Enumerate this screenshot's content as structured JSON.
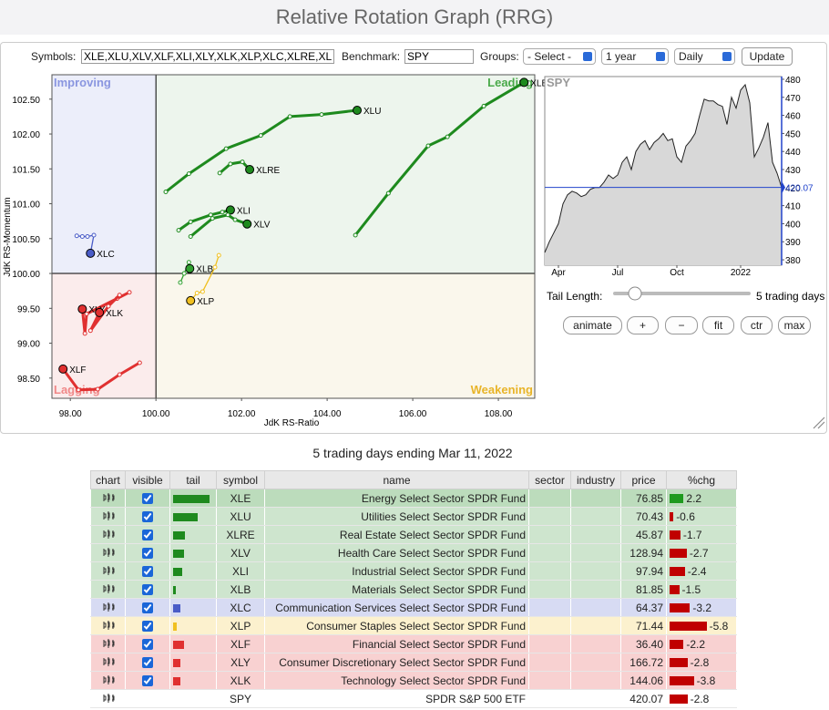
{
  "title": "Relative Rotation Graph (RRG)",
  "controls": {
    "symbols_label": "Symbols:",
    "symbols_value": "XLE,XLU,XLV,XLF,XLI,XLY,XLK,XLP,XLC,XLRE,XLB",
    "benchmark_label": "Benchmark:",
    "benchmark_value": "SPY",
    "groups_label": "Groups:",
    "groups_value": "- Select -",
    "period_value": "1 year",
    "frequency_value": "Daily",
    "update_button": "Update"
  },
  "rrg": {
    "type": "scatter",
    "x_label": "JdK RS-Ratio",
    "y_label": "JdK RS-Momentum",
    "center": [
      100,
      100
    ],
    "quadrants": {
      "improving": "Improving",
      "leading": "Leading",
      "weakening": "Weakening",
      "lagging": "Lagging"
    },
    "xlim": [
      97.57,
      108.85
    ],
    "ylim": [
      98.21,
      102.85
    ],
    "xticks": [
      {
        "value": 98,
        "label": "98.00"
      },
      {
        "value": 100,
        "label": "100.00"
      },
      {
        "value": 102,
        "label": "102.00"
      },
      {
        "value": 104,
        "label": "104.00"
      },
      {
        "value": 106,
        "label": "106.00"
      },
      {
        "value": 108,
        "label": "108.00"
      }
    ],
    "yticks": [
      {
        "value": 98.5,
        "label": "98.50"
      },
      {
        "value": 99,
        "label": "99.00"
      },
      {
        "value": 99.5,
        "label": "99.50"
      },
      {
        "value": 100,
        "label": "100.00"
      },
      {
        "value": 100.5,
        "label": "100.50"
      },
      {
        "value": 101,
        "label": "101.00"
      },
      {
        "value": 101.5,
        "label": "101.50"
      },
      {
        "value": 102,
        "label": "102.00"
      },
      {
        "value": 102.5,
        "label": "102.50"
      }
    ],
    "series": [
      {
        "name": "XLE",
        "color": "#1e8a1e",
        "x": [
          104.66,
          105.43,
          106.36,
          106.81,
          107.66,
          108.6
        ],
        "y": [
          100.55,
          101.15,
          101.83,
          101.96,
          102.4,
          102.74
        ]
      },
      {
        "name": "XLU",
        "color": "#1e8a1e",
        "x": [
          100.23,
          100.77,
          101.64,
          102.45,
          103.13,
          103.87,
          104.7
        ],
        "y": [
          101.17,
          101.43,
          101.79,
          101.98,
          102.25,
          102.28,
          102.34
        ]
      },
      {
        "name": "XLRE",
        "color": "#1e8a1e",
        "x": [
          101.49,
          101.74,
          102.02,
          102.19
        ],
        "y": [
          101.44,
          101.57,
          101.6,
          101.49
        ]
      },
      {
        "name": "XLI",
        "color": "#1e8a1e",
        "x": [
          100.53,
          100.81,
          101.28,
          101.55,
          101.74
        ],
        "y": [
          100.62,
          100.74,
          100.84,
          100.88,
          100.91
        ]
      },
      {
        "name": "XLV",
        "color": "#1e8a1e",
        "x": [
          100.81,
          101.32,
          101.68,
          101.85,
          102.13
        ],
        "y": [
          100.53,
          100.79,
          100.84,
          100.77,
          100.71
        ]
      },
      {
        "name": "XLC",
        "color": "#4a5cc7",
        "x": [
          98.15,
          98.28,
          98.4,
          98.55,
          98.47
        ],
        "y": [
          100.54,
          100.53,
          100.53,
          100.55,
          100.29
        ]
      },
      {
        "name": "XLB",
        "color": "#2fa02f",
        "x": [
          100.57,
          100.66,
          100.77,
          100.79
        ],
        "y": [
          99.87,
          100.0,
          100.16,
          100.07
        ]
      },
      {
        "name": "XLP",
        "color": "#f0c020",
        "x": [
          101.47,
          101.38,
          101.09,
          100.96,
          100.81
        ],
        "y": [
          100.26,
          100.09,
          99.74,
          99.72,
          99.61
        ]
      },
      {
        "name": "XLF",
        "color": "#e03030",
        "x": [
          99.62,
          99.15,
          98.64,
          98.19,
          97.83
        ],
        "y": [
          98.72,
          98.55,
          98.34,
          98.33,
          98.63
        ]
      },
      {
        "name": "XLY",
        "color": "#e03030",
        "x": [
          99.38,
          99.09,
          98.38,
          98.34,
          98.28
        ],
        "y": [
          99.73,
          99.64,
          99.42,
          99.14,
          99.49
        ]
      },
      {
        "name": "XLK",
        "color": "#e03030",
        "x": [
          99.15,
          98.89,
          98.47,
          98.68
        ],
        "y": [
          99.69,
          99.53,
          99.18,
          99.44
        ]
      }
    ]
  },
  "spy_chart": {
    "type": "area",
    "title": "SPY",
    "color": "#222222",
    "categories": [
      null,
      null,
      null,
      "Apr",
      null,
      null,
      null,
      null,
      null,
      null,
      null,
      null,
      null,
      null,
      null,
      null,
      "Jul",
      null,
      null,
      null,
      null,
      null,
      null,
      null,
      null,
      null,
      null,
      null,
      null,
      "Oct",
      null,
      null,
      null,
      null,
      null,
      null,
      null,
      null,
      null,
      null,
      null,
      null,
      null,
      "2022",
      null,
      null,
      null,
      null,
      null,
      null,
      null,
      null,
      null
    ],
    "values": [
      384,
      390,
      395,
      400,
      411,
      416,
      418,
      417,
      415,
      416,
      419,
      420,
      420,
      423,
      427,
      425,
      427,
      434,
      437,
      430,
      440,
      444,
      446,
      441,
      445,
      447,
      450,
      446,
      447,
      437,
      434,
      443,
      446,
      450,
      460,
      469,
      468,
      468,
      466,
      465,
      455,
      470,
      464,
      474,
      477,
      467,
      437,
      442,
      448,
      456,
      434,
      428,
      420.07
    ],
    "ylim": [
      377,
      481.5
    ],
    "yticks": [
      380,
      390,
      400,
      410,
      420,
      430,
      440,
      450,
      460,
      470,
      480
    ],
    "last_price": 420.07,
    "last_color": "#2244cc"
  },
  "tail_control": {
    "label": "Tail Length:",
    "value_text": "5 trading days"
  },
  "buttons": [
    "animate",
    "+",
    "−",
    "fit",
    "ctr",
    "max"
  ],
  "table": {
    "caption": "5 trading days ending Mar 11, 2022",
    "headers": [
      "chart",
      "visible",
      "tail",
      "symbol",
      "name",
      "sector",
      "industry",
      "price",
      "%chg"
    ],
    "rows": [
      {
        "symbol": "XLE",
        "name": "Energy Select Sector SPDR Fund",
        "price": "76.85",
        "chg": 2.2,
        "tail": 40,
        "color": "#1e8a1e"
      },
      {
        "symbol": "XLU",
        "name": "Utilities Select Sector SPDR Fund",
        "price": "70.43",
        "chg": -0.6,
        "tail": 27,
        "color": "#1e8a1e"
      },
      {
        "symbol": "XLRE",
        "name": "Real Estate Select Sector SPDR Fund",
        "price": "45.87",
        "chg": -1.7,
        "tail": 13,
        "color": "#1e8a1e"
      },
      {
        "symbol": "XLV",
        "name": "Health Care Select Sector SPDR Fund",
        "price": "128.94",
        "chg": -2.7,
        "tail": 12,
        "color": "#1e8a1e"
      },
      {
        "symbol": "XLI",
        "name": "Industrial Select Sector SPDR Fund",
        "price": "97.94",
        "chg": -2.4,
        "tail": 10,
        "color": "#1e8a1e"
      },
      {
        "symbol": "XLB",
        "name": "Materials Select Sector SPDR Fund",
        "price": "81.85",
        "chg": -1.5,
        "tail": 3,
        "color": "#1e8a1e"
      },
      {
        "symbol": "XLC",
        "name": "Communication Services Select Sector SPDR Fund",
        "price": "64.37",
        "chg": -3.2,
        "tail": 8,
        "color": "#4a5cc7"
      },
      {
        "symbol": "XLP",
        "name": "Consumer Staples Select Sector SPDR Fund",
        "price": "71.44",
        "chg": -5.8,
        "tail": 4,
        "color": "#f0c020"
      },
      {
        "symbol": "XLF",
        "name": "Financial Select Sector SPDR Fund",
        "price": "36.40",
        "chg": -2.2,
        "tail": 12,
        "color": "#e03030"
      },
      {
        "symbol": "XLY",
        "name": "Consumer Discretionary Select Sector SPDR Fund",
        "price": "166.72",
        "chg": -2.8,
        "tail": 8,
        "color": "#e03030"
      },
      {
        "symbol": "XLK",
        "name": "Technology Select Sector SPDR Fund",
        "price": "144.06",
        "chg": -3.8,
        "tail": 8,
        "color": "#e03030"
      },
      {
        "symbol": "SPY",
        "name": "SPDR S&P 500 ETF",
        "price": "420.07",
        "chg": -2.8,
        "tail": null,
        "color": null
      }
    ]
  }
}
